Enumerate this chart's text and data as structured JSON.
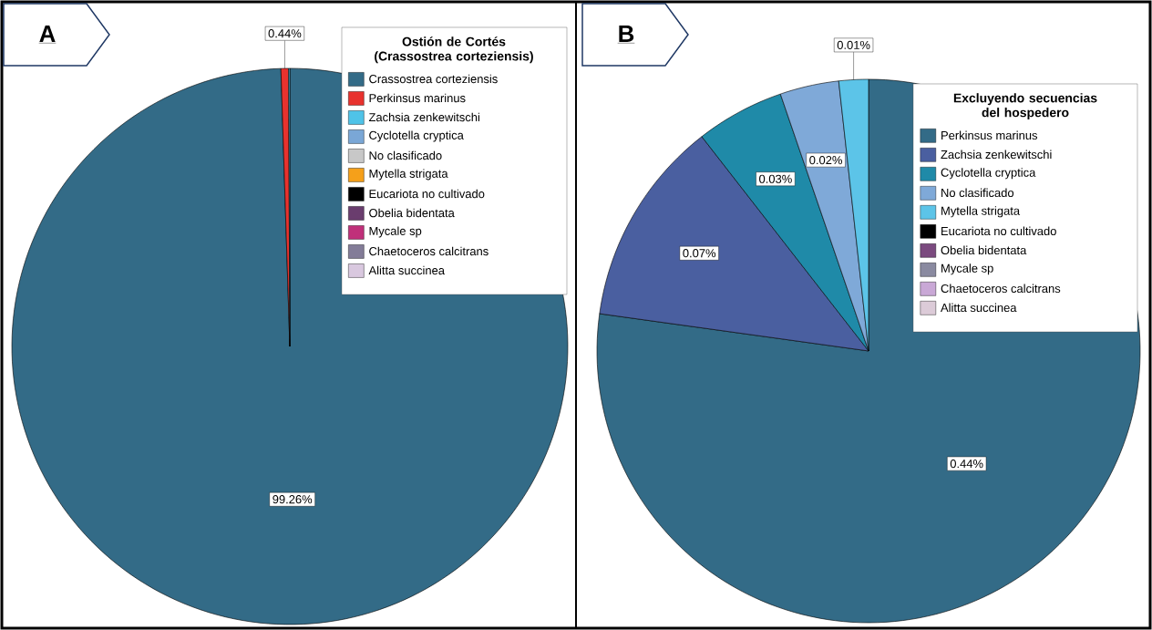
{
  "chart_data": [
    {
      "type": "pie",
      "legend_title": "Ostión de Cortés (Crassostrea corteziensis)",
      "legend": "top right",
      "annotations": [
        "A"
      ],
      "categories": [
        "Crassostrea corteziensis",
        "Perkinsus marinus",
        "Zachsia zenkewitschi",
        "Cyclotella cryptica",
        "No clasificado",
        "Mytella strigata",
        "Eucariota no cultivado",
        "Obelia bidentata",
        "Mycale sp",
        "Chaetoceros calcitrans",
        "Alitta succinea"
      ],
      "values": [
        99.26,
        0.44,
        0.07,
        0,
        0,
        0,
        0,
        0,
        0,
        0,
        0
      ],
      "value_labels": [
        "99.26%",
        "0.44%",
        null,
        null,
        null,
        null,
        null,
        null,
        null,
        null,
        null
      ],
      "colors": [
        "#336b87",
        "#e8322e",
        "#4fc3e8",
        "#7aa7d6",
        "#c8c8c8",
        "#f5a01a",
        "#000000",
        "#6a3d6e",
        "#c0307a",
        "#837c98",
        "#d9c8df"
      ]
    },
    {
      "type": "pie",
      "legend_title": "Excluyendo secuencias del hospedero",
      "legend": "top right",
      "annotations": [
        "B"
      ],
      "categories": [
        "Perkinsus marinus",
        "Zachsia zenkewitschi",
        "Cyclotella cryptica",
        "No clasificado",
        "Mytella strigata",
        "Eucariota no cultivado",
        "Obelia bidentata",
        "Mycale sp",
        "Chaetoceros calcitrans",
        "Alitta succinea"
      ],
      "values": [
        0.44,
        0.07,
        0.03,
        0.02,
        0.01,
        0,
        0,
        0,
        0,
        0
      ],
      "value_labels": [
        "0.44%",
        "0.07%",
        "0.03%",
        "0.02%",
        "0.01%",
        null,
        null,
        null,
        null,
        null
      ],
      "colors": [
        "#336b87",
        "#4a5fa0",
        "#1f8aa8",
        "#7fa9d8",
        "#5cc4e8",
        "#000000",
        "#7b4a7f",
        "#8a8aa0",
        "#c9a8d6",
        "#dccbd8"
      ]
    }
  ]
}
